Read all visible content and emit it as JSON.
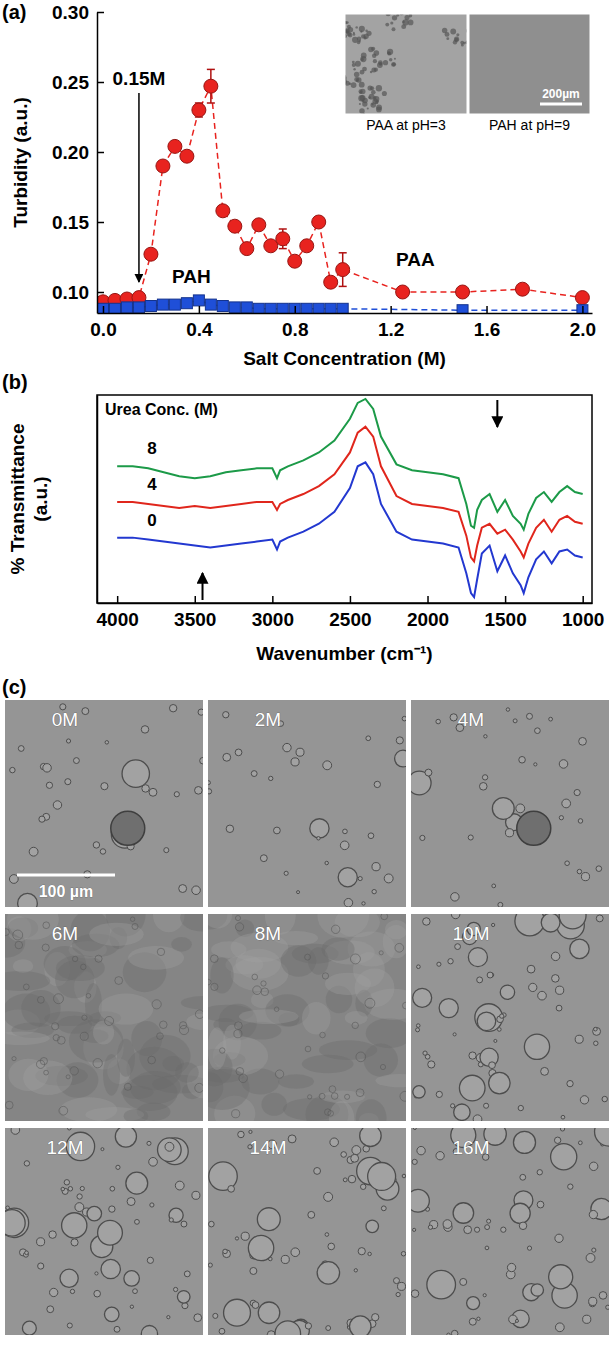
{
  "chart_data": [
    {
      "type": "line",
      "panel": "(a)",
      "x_label": "Salt Concentration (M)",
      "y_label": "Turbidity (a.u.)",
      "xlim": [
        -0.025,
        2.04
      ],
      "ylim": [
        0.085,
        0.3
      ],
      "xticks": [
        {
          "value": 0,
          "label": "0.0"
        },
        0.4,
        0.8,
        1.2,
        1.6,
        {
          "value": 2,
          "label": "2.0"
        }
      ],
      "yticks": [
        {
          "value": 0.1,
          "label": "0.10"
        },
        0.15,
        {
          "value": 0.2,
          "label": "0.20"
        },
        0.25,
        {
          "value": 0.3,
          "label": "0.30"
        }
      ],
      "series": [
        {
          "name": "PAA",
          "color": "#e8231f",
          "marker": "circle",
          "line_style": "dashed",
          "x": [
            0,
            0.05,
            0.1,
            0.15,
            0.2,
            0.25,
            0.3,
            0.35,
            0.4,
            0.45,
            0.5,
            0.55,
            0.6,
            0.65,
            0.7,
            0.75,
            0.8,
            0.85,
            0.9,
            0.95,
            1.0,
            1.25,
            1.5,
            1.75,
            2.0
          ],
          "values": [
            0.093,
            0.094,
            0.095,
            0.096,
            0.127,
            0.19,
            0.204,
            0.197,
            0.23,
            0.247,
            0.158,
            0.147,
            0.131,
            0.148,
            0.133,
            0.138,
            0.122,
            0.133,
            0.15,
            0.107,
            0.116,
            0.1,
            0.1,
            0.102,
            0.096
          ],
          "errors": [
            0.002,
            0.002,
            0.002,
            0.002,
            0.003,
            0.003,
            0.003,
            0.003,
            0.005,
            0.012,
            0.003,
            0.003,
            0.003,
            0.003,
            0.003,
            0.007,
            0.003,
            0.003,
            0.003,
            0.003,
            0.012,
            0.002,
            0.002,
            0.002,
            0.002
          ]
        },
        {
          "name": "PAH",
          "color": "#1f4fd8",
          "marker": "square",
          "line_style": "dashed",
          "x": [
            0,
            0.05,
            0.1,
            0.15,
            0.2,
            0.25,
            0.3,
            0.35,
            0.4,
            0.45,
            0.5,
            0.55,
            0.6,
            0.65,
            0.7,
            0.75,
            0.8,
            0.85,
            0.9,
            0.95,
            1.0,
            1.5,
            2.0
          ],
          "values": [
            0.088,
            0.088,
            0.089,
            0.089,
            0.09,
            0.091,
            0.091,
            0.092,
            0.094,
            0.091,
            0.09,
            0.089,
            0.089,
            0.088,
            0.088,
            0.088,
            0.088,
            0.088,
            0.088,
            0.088,
            0.088,
            0.087,
            0.087
          ]
        }
      ],
      "annotations": [
        {
          "text": "0.15M",
          "x": 0.15
        }
      ],
      "insets": [
        {
          "label": "PAA at pH=3"
        },
        {
          "label": "PAH at pH=9",
          "scale_bar": "200µm"
        }
      ]
    },
    {
      "type": "line",
      "panel": "(b)",
      "x_label": "Wavenumber (cm⁻¹)",
      "y_label": "% Transmittance (a.u.)",
      "legend_title": "Urea Conc. (M)",
      "tick_labels": "x",
      "xlim": [
        4130,
        940
      ],
      "ylim": [
        0,
        10.5
      ],
      "xticks": [
        4000,
        3500,
        3000,
        2500,
        2000,
        1500,
        1000
      ],
      "x": [
        4000,
        3900,
        3800,
        3700,
        3600,
        3500,
        3400,
        3300,
        3200,
        3100,
        3000,
        2970,
        2950,
        2900,
        2800,
        2700,
        2600,
        2500,
        2450,
        2400,
        2350,
        2300,
        2200,
        2100,
        2000,
        1900,
        1800,
        1750,
        1720,
        1700,
        1680,
        1650,
        1600,
        1550,
        1500,
        1450,
        1400,
        1380,
        1350,
        1300,
        1250,
        1200,
        1150,
        1100,
        1050,
        1000
      ],
      "series": [
        {
          "name": "0",
          "color": "#2338d0",
          "values": [
            3.3,
            3.3,
            3.2,
            3.1,
            3.0,
            2.9,
            2.8,
            2.9,
            3.0,
            3.1,
            3.2,
            2.7,
            3.1,
            3.3,
            3.6,
            4.0,
            4.6,
            5.8,
            6.9,
            7.1,
            6.5,
            5.0,
            3.6,
            3.2,
            3.1,
            3.0,
            2.8,
            1.5,
            0.5,
            0.3,
            1.2,
            2.5,
            2.9,
            1.6,
            2.4,
            1.5,
            0.9,
            0.5,
            1.3,
            2.2,
            2.6,
            2.0,
            2.6,
            2.7,
            2.4,
            2.3
          ]
        },
        {
          "name": "4",
          "color": "#e0261c",
          "values": [
            5.1,
            5.1,
            5.0,
            4.9,
            4.8,
            4.9,
            4.8,
            4.9,
            5.0,
            5.1,
            5.1,
            4.7,
            5.0,
            5.2,
            5.5,
            5.9,
            6.5,
            7.6,
            8.6,
            8.9,
            8.4,
            6.9,
            5.4,
            5.0,
            4.9,
            4.8,
            4.6,
            3.4,
            2.3,
            2.1,
            2.9,
            3.8,
            4.0,
            3.5,
            3.7,
            3.2,
            2.6,
            2.3,
            3.0,
            3.8,
            4.2,
            3.6,
            4.2,
            4.4,
            4.1,
            4.0
          ]
        },
        {
          "name": "8",
          "color": "#1c9a48",
          "values": [
            6.9,
            6.9,
            6.8,
            6.6,
            6.4,
            6.3,
            6.4,
            6.6,
            6.7,
            6.8,
            6.8,
            6.3,
            6.7,
            6.9,
            7.2,
            7.6,
            8.2,
            9.3,
            10.1,
            10.3,
            9.8,
            8.4,
            7.0,
            6.7,
            6.6,
            6.5,
            6.3,
            5.0,
            3.9,
            3.8,
            4.7,
            5.2,
            5.5,
            4.6,
            5.2,
            4.4,
            4.0,
            3.7,
            4.5,
            5.3,
            5.6,
            5.1,
            5.6,
            5.9,
            5.6,
            5.5
          ]
        }
      ],
      "annotations": [
        {
          "x": 3450,
          "direction": "up"
        },
        {
          "x": 1550,
          "direction": "down"
        }
      ]
    }
  ],
  "micrographs": {
    "panel": "(c)",
    "labels": [
      "0M",
      "2M",
      "4M",
      "6M",
      "8M",
      "10M",
      "12M",
      "14M",
      "16M"
    ],
    "scale_bar": "100 µm"
  }
}
